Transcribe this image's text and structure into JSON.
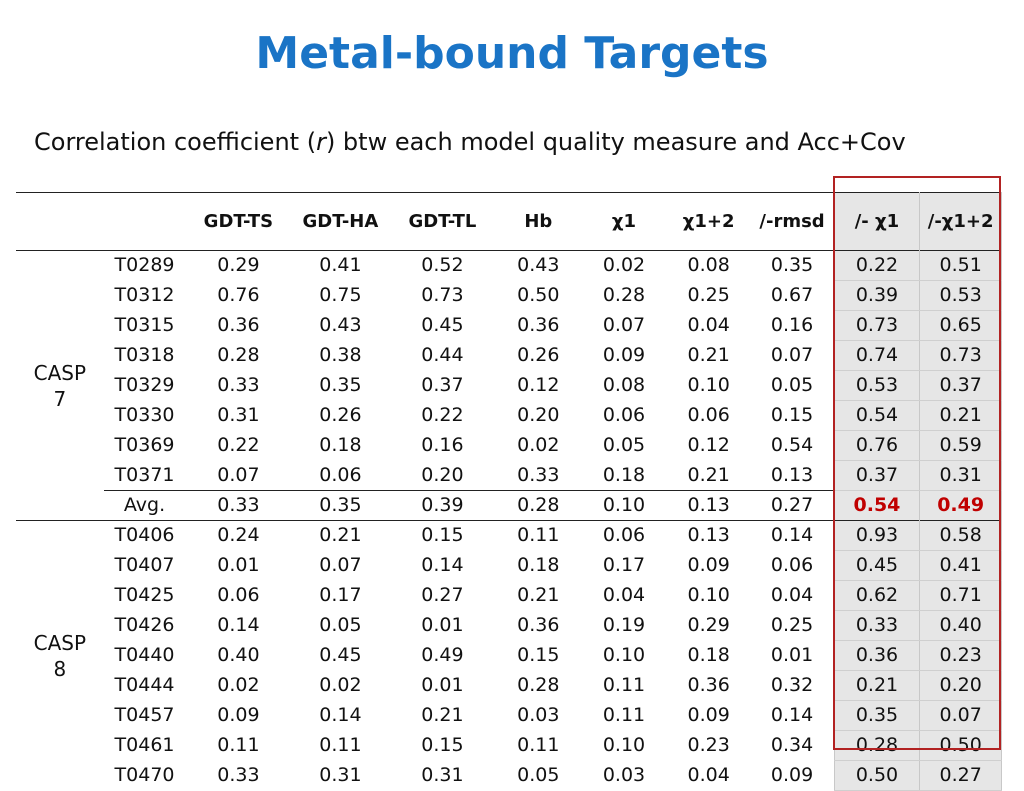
{
  "title": "Metal-bound Targets",
  "subtitle": {
    "before": "Correlation coefficient (",
    "r": "r",
    "after": ") btw each model quality measure and Acc+Cov"
  },
  "columns": [
    "",
    "",
    "GDT-TS",
    "GDT-HA",
    "GDT-TL",
    "Hb",
    "χ1",
    "χ1+2",
    "/-rmsd",
    "/- χ1",
    "/-χ1+2"
  ],
  "colors": {
    "title": "#1a74c6",
    "highlight_box": "#b22222",
    "highlight_fill": "#e6e6e6",
    "avg_highlight_text": "#c00000"
  },
  "groups": [
    {
      "label": "CASP 7",
      "rows": [
        {
          "target": "T0289",
          "values": [
            "0.29",
            "0.41",
            "0.52",
            "0.43",
            "0.02",
            "0.08",
            "0.35",
            "0.22",
            "0.51"
          ]
        },
        {
          "target": "T0312",
          "values": [
            "0.76",
            "0.75",
            "0.73",
            "0.50",
            "0.28",
            "0.25",
            "0.67",
            "0.39",
            "0.53"
          ]
        },
        {
          "target": "T0315",
          "values": [
            "0.36",
            "0.43",
            "0.45",
            "0.36",
            "0.07",
            "0.04",
            "0.16",
            "0.73",
            "0.65"
          ]
        },
        {
          "target": "T0318",
          "values": [
            "0.28",
            "0.38",
            "0.44",
            "0.26",
            "0.09",
            "0.21",
            "0.07",
            "0.74",
            "0.73"
          ]
        },
        {
          "target": "T0329",
          "values": [
            "0.33",
            "0.35",
            "0.37",
            "0.12",
            "0.08",
            "0.10",
            "0.05",
            "0.53",
            "0.37"
          ]
        },
        {
          "target": "T0330",
          "values": [
            "0.31",
            "0.26",
            "0.22",
            "0.20",
            "0.06",
            "0.06",
            "0.15",
            "0.54",
            "0.21"
          ]
        },
        {
          "target": "T0369",
          "values": [
            "0.22",
            "0.18",
            "0.16",
            "0.02",
            "0.05",
            "0.12",
            "0.54",
            "0.76",
            "0.59"
          ]
        },
        {
          "target": "T0371",
          "values": [
            "0.07",
            "0.06",
            "0.20",
            "0.33",
            "0.18",
            "0.21",
            "0.13",
            "0.37",
            "0.31"
          ]
        }
      ],
      "avg": {
        "label": "Avg.",
        "values": [
          "0.33",
          "0.35",
          "0.39",
          "0.28",
          "0.10",
          "0.13",
          "0.27",
          "0.54",
          "0.49"
        ]
      }
    },
    {
      "label": "CASP 8",
      "rows": [
        {
          "target": "T0406",
          "values": [
            "0.24",
            "0.21",
            "0.15",
            "0.11",
            "0.06",
            "0.13",
            "0.14",
            "0.93",
            "0.58"
          ]
        },
        {
          "target": "T0407",
          "values": [
            "0.01",
            "0.07",
            "0.14",
            "0.18",
            "0.17",
            "0.09",
            "0.06",
            "0.45",
            "0.41"
          ]
        },
        {
          "target": "T0425",
          "values": [
            "0.06",
            "0.17",
            "0.27",
            "0.21",
            "0.04",
            "0.10",
            "0.04",
            "0.62",
            "0.71"
          ]
        },
        {
          "target": "T0426",
          "values": [
            "0.14",
            "0.05",
            "0.01",
            "0.36",
            "0.19",
            "0.29",
            "0.25",
            "0.33",
            "0.40"
          ]
        },
        {
          "target": "T0440",
          "values": [
            "0.40",
            "0.45",
            "0.49",
            "0.15",
            "0.10",
            "0.18",
            "0.01",
            "0.36",
            "0.23"
          ]
        },
        {
          "target": "T0444",
          "values": [
            "0.02",
            "0.02",
            "0.01",
            "0.28",
            "0.11",
            "0.36",
            "0.32",
            "0.21",
            "0.20"
          ]
        },
        {
          "target": "T0457",
          "values": [
            "0.09",
            "0.14",
            "0.21",
            "0.03",
            "0.11",
            "0.09",
            "0.14",
            "0.35",
            "0.07"
          ]
        },
        {
          "target": "T0461",
          "values": [
            "0.11",
            "0.11",
            "0.15",
            "0.11",
            "0.10",
            "0.23",
            "0.34",
            "0.28",
            "0.50"
          ]
        },
        {
          "target": "T0470",
          "values": [
            "0.33",
            "0.31",
            "0.31",
            "0.05",
            "0.03",
            "0.04",
            "0.09",
            "0.50",
            "0.27"
          ]
        }
      ]
    }
  ]
}
